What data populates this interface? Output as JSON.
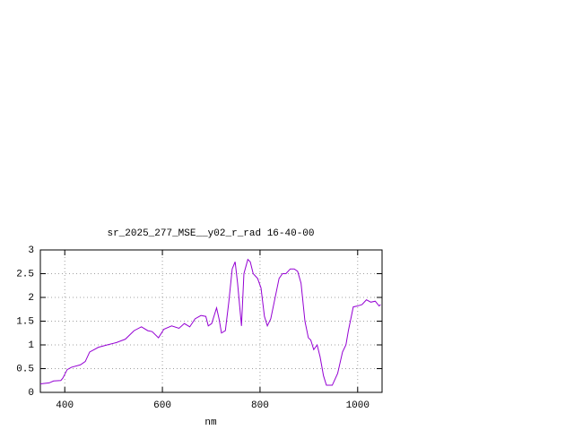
{
  "chart_data": {
    "type": "line",
    "title": "sr_2025_277_MSE__y02_r_rad 16-40-00",
    "x_label": "nm",
    "x": [
      350,
      368,
      377,
      392,
      396,
      405,
      414,
      432,
      442,
      451,
      469,
      487,
      506,
      524,
      542,
      557,
      570,
      579,
      592,
      603,
      619,
      634,
      645,
      656,
      667,
      679,
      689,
      694,
      701,
      711,
      716,
      721,
      729,
      736,
      743,
      749,
      754,
      762,
      767,
      775,
      780,
      786,
      795,
      802,
      809,
      815,
      822,
      829,
      839,
      846,
      853,
      862,
      870,
      877,
      884,
      892,
      899,
      904,
      910,
      917,
      923,
      930,
      936,
      948,
      959,
      969,
      976,
      981,
      991,
      1000,
      1009,
      1018,
      1027,
      1036,
      1044,
      1047
    ],
    "series": [
      {
        "color": "#9400d3",
        "values": [
          0.18,
          0.2,
          0.24,
          0.25,
          0.3,
          0.48,
          0.53,
          0.58,
          0.65,
          0.85,
          0.95,
          1.0,
          1.05,
          1.12,
          1.3,
          1.38,
          1.3,
          1.28,
          1.15,
          1.33,
          1.4,
          1.35,
          1.45,
          1.38,
          1.55,
          1.62,
          1.6,
          1.4,
          1.45,
          1.78,
          1.55,
          1.25,
          1.3,
          1.9,
          2.6,
          2.75,
          2.3,
          1.4,
          2.5,
          2.8,
          2.75,
          2.5,
          2.4,
          2.2,
          1.6,
          1.4,
          1.55,
          1.9,
          2.4,
          2.5,
          2.5,
          2.6,
          2.6,
          2.55,
          2.3,
          1.5,
          1.15,
          1.1,
          0.9,
          1.0,
          0.75,
          0.35,
          0.15,
          0.15,
          0.4,
          0.85,
          1.0,
          1.3,
          1.8,
          1.82,
          1.85,
          1.95,
          1.9,
          1.92,
          1.82,
          1.85
        ]
      }
    ],
    "xlim": [
      350,
      1050
    ],
    "ylim": [
      0,
      3
    ],
    "xticks": [
      400,
      600,
      800,
      1000
    ],
    "yticks": [
      0,
      0.5,
      1,
      1.5,
      2,
      2.5,
      3
    ],
    "grid": true
  }
}
